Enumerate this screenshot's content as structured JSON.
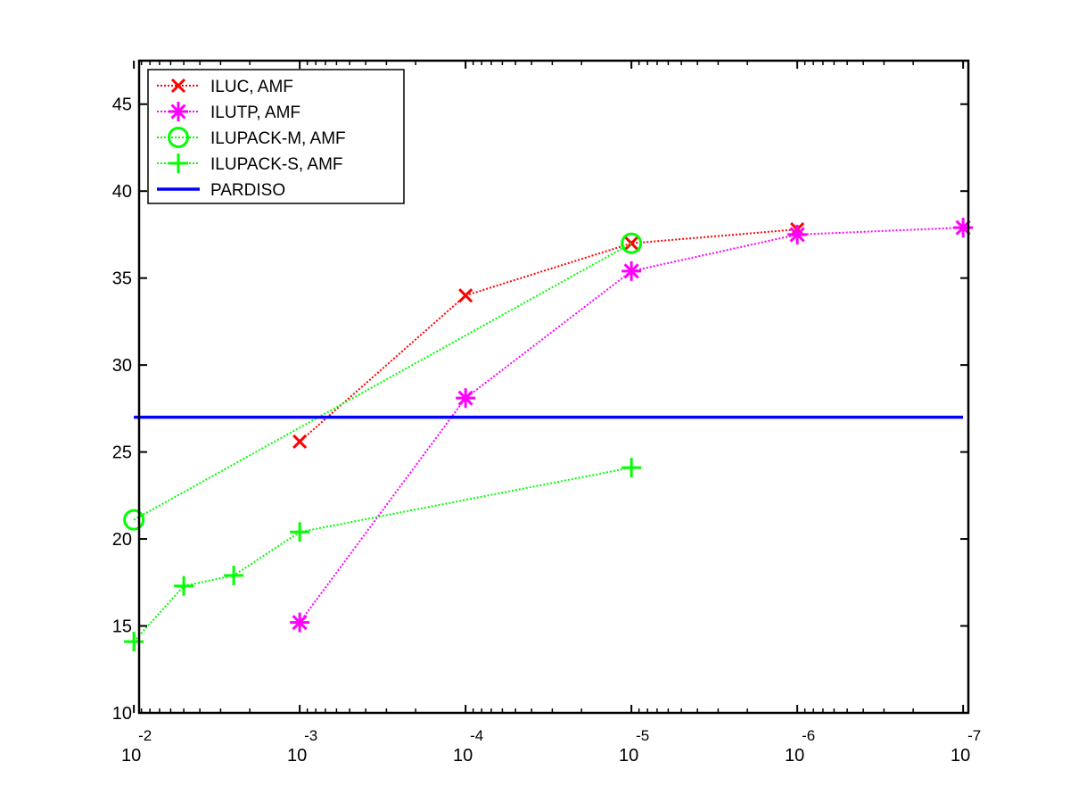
{
  "chart_data": {
    "type": "line",
    "title": "",
    "xlabel": "",
    "ylabel": "",
    "x_scale": "log",
    "x_reversed": true,
    "xlim": [
      0.0093,
      9.3e-08
    ],
    "ylim": [
      10,
      47.5
    ],
    "x_ticks": [
      {
        "value": 0.01,
        "base": "10",
        "exp": "-2"
      },
      {
        "value": 0.001,
        "base": "10",
        "exp": "-3"
      },
      {
        "value": 0.0001,
        "base": "10",
        "exp": "-4"
      },
      {
        "value": 1e-05,
        "base": "10",
        "exp": "-5"
      },
      {
        "value": 1e-06,
        "base": "10",
        "exp": "-6"
      },
      {
        "value": 1e-07,
        "base": "10",
        "exp": "-7"
      }
    ],
    "y_ticks": [
      "10",
      "15",
      "20",
      "25",
      "30",
      "35",
      "40",
      "45"
    ],
    "grid": false,
    "legend_position": "top-left",
    "series": [
      {
        "name": "ILUC, AMF",
        "color": "#ff0000",
        "marker": "x",
        "line_style": "dotted",
        "x": [
          0.001,
          0.0001,
          1e-05,
          1e-06
        ],
        "y": [
          25.6,
          34.0,
          37.0,
          37.8
        ]
      },
      {
        "name": "ILUTP, AMF",
        "color": "#ff00ff",
        "marker": "asterisk",
        "line_style": "dotted",
        "x": [
          0.001,
          0.0001,
          1e-05,
          1e-06,
          1e-07
        ],
        "y": [
          15.2,
          28.1,
          35.4,
          37.5,
          37.9
        ]
      },
      {
        "name": "ILUPACK-M, AMF",
        "color": "#00ff00",
        "marker": "circle",
        "line_style": "dotted",
        "x": [
          0.01,
          1e-05
        ],
        "y": [
          21.1,
          37.0
        ]
      },
      {
        "name": "ILUPACK-S, AMF",
        "color": "#00ff00",
        "marker": "plus",
        "line_style": "dotted",
        "x": [
          0.01,
          0.005,
          0.0025,
          0.001,
          1e-05
        ],
        "y": [
          14.1,
          17.3,
          17.9,
          20.4,
          24.1
        ]
      },
      {
        "name": "PARDISO",
        "color": "#0000ff",
        "marker": "none",
        "line_style": "solid",
        "x": [
          0.01,
          1e-07
        ],
        "y": [
          27.0,
          27.0
        ]
      }
    ]
  }
}
